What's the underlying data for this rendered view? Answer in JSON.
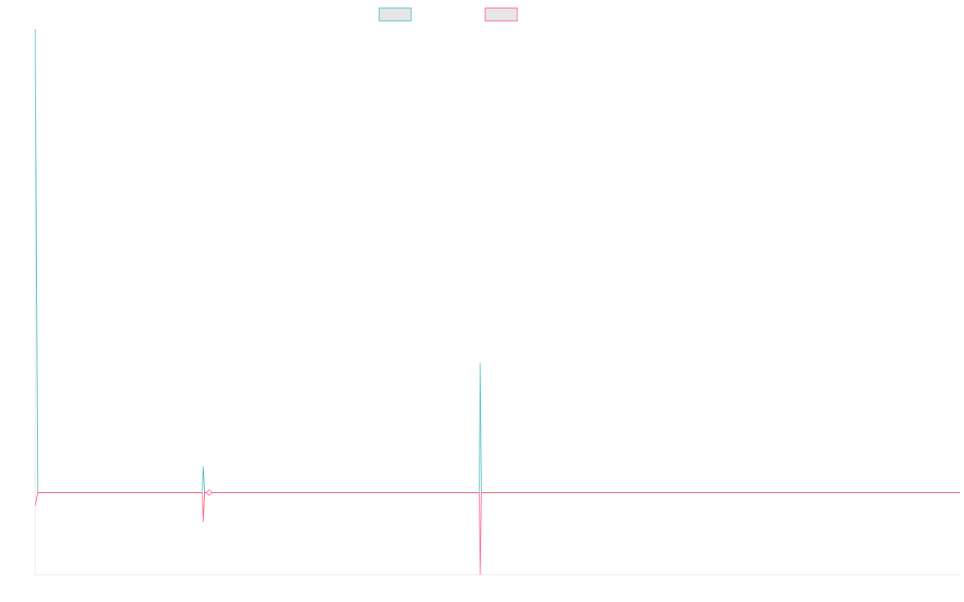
{
  "chart_data": {
    "type": "line",
    "title": "",
    "xlabel": "",
    "ylabel": "",
    "grid": false,
    "legend_placement": "top-center",
    "x_count": 400,
    "ylim": [
      -0.62,
      3.5
    ],
    "series": [
      {
        "name": "",
        "color": "#4bc0c0",
        "fill": "#e6e6e6",
        "points": [
          {
            "x": 0,
            "y": 3.5
          },
          {
            "x": 1,
            "y": 0
          },
          {
            "x": 72,
            "y": 0
          },
          {
            "x": 72.5,
            "y": 0.2
          },
          {
            "x": 73,
            "y": 0
          },
          {
            "x": 75,
            "y": 0
          },
          {
            "x": 191.5,
            "y": 0
          },
          {
            "x": 192,
            "y": 0.98
          },
          {
            "x": 192.5,
            "y": 0
          },
          {
            "x": 399,
            "y": 0
          }
        ]
      },
      {
        "name": "",
        "color": "#ff6384",
        "fill": "#e6e6e6",
        "points": [
          {
            "x": 0,
            "y": -0.1
          },
          {
            "x": 1,
            "y": 0
          },
          {
            "x": 72,
            "y": 0
          },
          {
            "x": 72.5,
            "y": -0.22
          },
          {
            "x": 73,
            "y": 0
          },
          {
            "x": 75,
            "y": 0
          },
          {
            "x": 191.5,
            "y": 0
          },
          {
            "x": 192,
            "y": -0.62
          },
          {
            "x": 192.5,
            "y": 0
          },
          {
            "x": 399,
            "y": 0
          }
        ],
        "markers": [
          {
            "x": 75,
            "y": 0
          }
        ]
      }
    ]
  }
}
